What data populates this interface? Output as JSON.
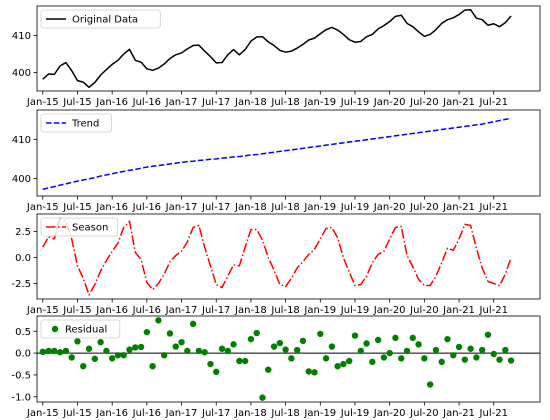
{
  "chart_data": [
    {
      "type": "line",
      "series": [
        {
          "name": "Original Data",
          "color": "#000000",
          "linestyle": "solid",
          "values": [
            398.2,
            399.6,
            399.5,
            401.8,
            402.7,
            400.5,
            397.8,
            397.4,
            396.0,
            397.3,
            399.3,
            400.8,
            402.2,
            403.3,
            405.0,
            406.3,
            403.3,
            402.8,
            401.0,
            400.6,
            401.2,
            402.3,
            403.8,
            404.8,
            405.3,
            406.4,
            407.3,
            407.4,
            405.8,
            404.3,
            402.6,
            402.7,
            404.8,
            406.2,
            404.8,
            406.2,
            408.5,
            409.6,
            409.7,
            408.3,
            407.3,
            406.0,
            405.5,
            405.8,
            406.6,
            407.6,
            408.8,
            409.3,
            410.5,
            411.6,
            412.2,
            411.5,
            410.3,
            408.9,
            408.2,
            408.4,
            409.7,
            410.3,
            411.8,
            412.7,
            413.8,
            415.2,
            415.5,
            413.3,
            412.4,
            411.0,
            409.8,
            410.3,
            411.6,
            413.3,
            414.3,
            414.8,
            415.7,
            416.9,
            417.0,
            414.7,
            414.3,
            412.8,
            413.2,
            412.4,
            413.5,
            415.3
          ]
        }
      ],
      "xlim": [
        "2014-12-01",
        "2022-03-01"
      ],
      "ylim": [
        395,
        418
      ],
      "yticks": [
        400,
        410
      ],
      "xticks": [
        "Jan-15",
        "Jul-15",
        "Jan-16",
        "Jul-16",
        "Jan-17",
        "Jul-17",
        "Jan-18",
        "Jul-18",
        "Jan-19",
        "Jul-19",
        "Jan-20",
        "Jul-20",
        "Jan-21",
        "Jul-21"
      ],
      "legend": {
        "entries": [
          "Original Data"
        ],
        "location": "upper-left"
      }
    },
    {
      "type": "line",
      "series": [
        {
          "name": "Trend",
          "color": "#0000ff",
          "linestyle": "dashed",
          "values": [
            397.2,
            397.6,
            397.9,
            398.3,
            398.6,
            399.0,
            399.3,
            399.6,
            399.9,
            400.2,
            400.6,
            400.9,
            401.2,
            401.5,
            401.8,
            402.1,
            402.3,
            402.6,
            402.9,
            403.1,
            403.3,
            403.5,
            403.7,
            403.9,
            404.1,
            404.3,
            404.4,
            404.6,
            404.7,
            404.9,
            405.0,
            405.2,
            405.3,
            405.5,
            405.6,
            405.8,
            406.0,
            406.1,
            406.3,
            406.5,
            406.7,
            406.9,
            407.1,
            407.3,
            407.5,
            407.7,
            407.9,
            408.1,
            408.3,
            408.5,
            408.7,
            408.9,
            409.1,
            409.3,
            409.5,
            409.7,
            409.9,
            410.1,
            410.3,
            410.5,
            410.7,
            410.9,
            411.1,
            411.3,
            411.5,
            411.7,
            411.9,
            412.1,
            412.3,
            412.5,
            412.7,
            412.9,
            413.1,
            413.3,
            413.5,
            413.7,
            413.9,
            414.2,
            414.5,
            414.8,
            415.1,
            415.4
          ]
        }
      ],
      "xlim": [
        "2014-12-01",
        "2022-03-01"
      ],
      "ylim": [
        395.5,
        417.5
      ],
      "yticks": [
        400,
        410
      ],
      "xticks": [
        "Jan-15",
        "Jul-15",
        "Jan-16",
        "Jul-16",
        "Jan-17",
        "Jul-17",
        "Jan-18",
        "Jul-18",
        "Jan-19",
        "Jul-19",
        "Jan-20",
        "Jul-20",
        "Jan-21",
        "Jul-21"
      ],
      "legend": {
        "entries": [
          "Trend"
        ],
        "location": "upper-left"
      }
    },
    {
      "type": "line",
      "series": [
        {
          "name": "Season",
          "color": "#ff0000",
          "linestyle": "dashdot",
          "values": [
            1.0,
            2.0,
            1.8,
            3.8,
            3.5,
            1.8,
            -0.8,
            -2.0,
            -3.6,
            -2.6,
            -1.3,
            -0.3,
            0.6,
            1.4,
            2.9,
            3.5,
            0.5,
            -0.2,
            -2.4,
            -3.1,
            -2.5,
            -1.6,
            -0.4,
            0.2,
            0.6,
            1.5,
            2.9,
            3.1,
            1.0,
            -0.8,
            -2.6,
            -2.9,
            -1.8,
            -0.7,
            -0.8,
            1.0,
            2.7,
            2.7,
            1.7,
            0.0,
            -1.2,
            -2.6,
            -2.8,
            -2.0,
            -1.0,
            -0.4,
            0.3,
            0.8,
            1.8,
            2.8,
            2.9,
            1.9,
            0.0,
            -1.4,
            -2.7,
            -2.6,
            -1.8,
            -0.5,
            0.3,
            0.6,
            1.8,
            2.9,
            3.0,
            0.2,
            -0.9,
            -2.1,
            -2.7,
            -2.7,
            -1.8,
            -0.5,
            0.9,
            0.7,
            1.8,
            3.2,
            3.1,
            0.9,
            -1.0,
            -2.3,
            -2.5,
            -2.7,
            -1.6,
            0.0
          ]
        }
      ],
      "xlim": [
        "2014-12-01",
        "2022-03-01"
      ],
      "ylim": [
        -4.0,
        4.2
      ],
      "yticks": [
        -2.5,
        0.0,
        2.5
      ],
      "xticks": [
        "Jan-15",
        "Jul-15",
        "Jan-16",
        "Jul-16",
        "Jan-17",
        "Jul-17",
        "Jan-18",
        "Jul-18",
        "Jan-19",
        "Jul-19",
        "Jan-20",
        "Jul-20",
        "Jan-21",
        "Jul-21"
      ],
      "legend": {
        "entries": [
          "Season"
        ],
        "location": "upper-left"
      }
    },
    {
      "type": "scatter",
      "series": [
        {
          "name": "Residual",
          "color": "#008000",
          "marker": "circle",
          "values": [
            0.03,
            0.05,
            0.05,
            0.02,
            0.05,
            -0.1,
            0.27,
            -0.3,
            0.1,
            -0.13,
            0.25,
            0.05,
            -0.12,
            -0.05,
            -0.05,
            0.08,
            0.13,
            0.14,
            0.48,
            -0.3,
            0.75,
            -0.05,
            0.45,
            0.15,
            0.25,
            0.05,
            0.67,
            0.05,
            0.02,
            -0.25,
            -0.43,
            0.1,
            0.05,
            0.2,
            -0.18,
            -0.18,
            0.32,
            0.46,
            -1.02,
            -0.38,
            0.15,
            0.23,
            0.08,
            -0.12,
            0.07,
            0.28,
            -0.42,
            -0.44,
            0.44,
            -0.12,
            0.15,
            -0.3,
            -0.25,
            -0.18,
            0.4,
            0.05,
            0.22,
            -0.2,
            0.3,
            -0.1,
            0.0,
            0.35,
            -0.12,
            0.05,
            0.35,
            0.2,
            -0.12,
            -0.72,
            0.07,
            -0.2,
            0.32,
            -0.05,
            0.14,
            -0.15,
            0.1,
            -0.1,
            0.07,
            0.42,
            -0.02,
            -0.15,
            0.07,
            -0.17
          ]
        }
      ],
      "hline": 0.0,
      "xlim": [
        "2014-12-01",
        "2022-03-01"
      ],
      "ylim": [
        -1.12,
        0.85
      ],
      "yticks": [
        -1.0,
        -0.5,
        0.0,
        0.5
      ],
      "xticks": [
        "Jan-15",
        "Jul-15",
        "Jan-16",
        "Jul-16",
        "Jan-17",
        "Jul-17",
        "Jan-18",
        "Jul-18",
        "Jan-19",
        "Jul-19",
        "Jan-20",
        "Jul-20",
        "Jan-21",
        "Jul-21"
      ],
      "legend": {
        "entries": [
          "Residual"
        ],
        "location": "upper-left"
      }
    }
  ]
}
